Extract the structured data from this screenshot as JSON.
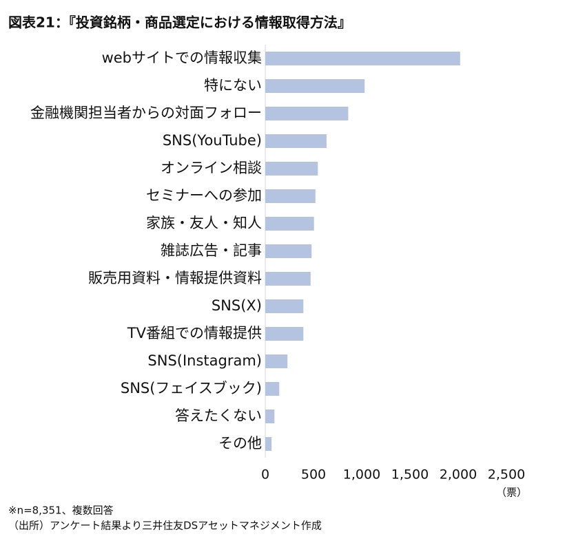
{
  "chart_data": {
    "type": "hbar",
    "title": "図表21：『投資銘柄・商品選定における情報取得方法』",
    "categories": [
      "webサイトでの情報収集",
      "特にない",
      "金融機関担当者からの対面フォロー",
      "SNS(YouTube)",
      "オンライン相談",
      "セミナーへの参加",
      "家族・友人・知人",
      "雑誌広告・記事",
      "販売用資料・情報提供資料",
      "SNS(X)",
      "TV番組での情報提供",
      "SNS(Instagram)",
      "SNS(フェイスブック)",
      "答えたくない",
      "その他"
    ],
    "values": [
      2020,
      1030,
      860,
      635,
      545,
      520,
      505,
      480,
      470,
      395,
      395,
      230,
      145,
      95,
      65
    ],
    "color": "#b4c3e0",
    "xlim": [
      0,
      2500
    ],
    "xticks": [
      0,
      500,
      {
        "value": 1000,
        "label": "1,000"
      },
      {
        "value": 1500,
        "label": "1,500"
      },
      {
        "value": 2000,
        "label": "2,000"
      },
      {
        "value": 2500,
        "label": "2,500"
      }
    ],
    "x_label": "（票）",
    "notes": [
      "※n=8,351、複数回答",
      "（出所）アンケート結果より三井住友DSアセットマネジメント作成"
    ]
  }
}
